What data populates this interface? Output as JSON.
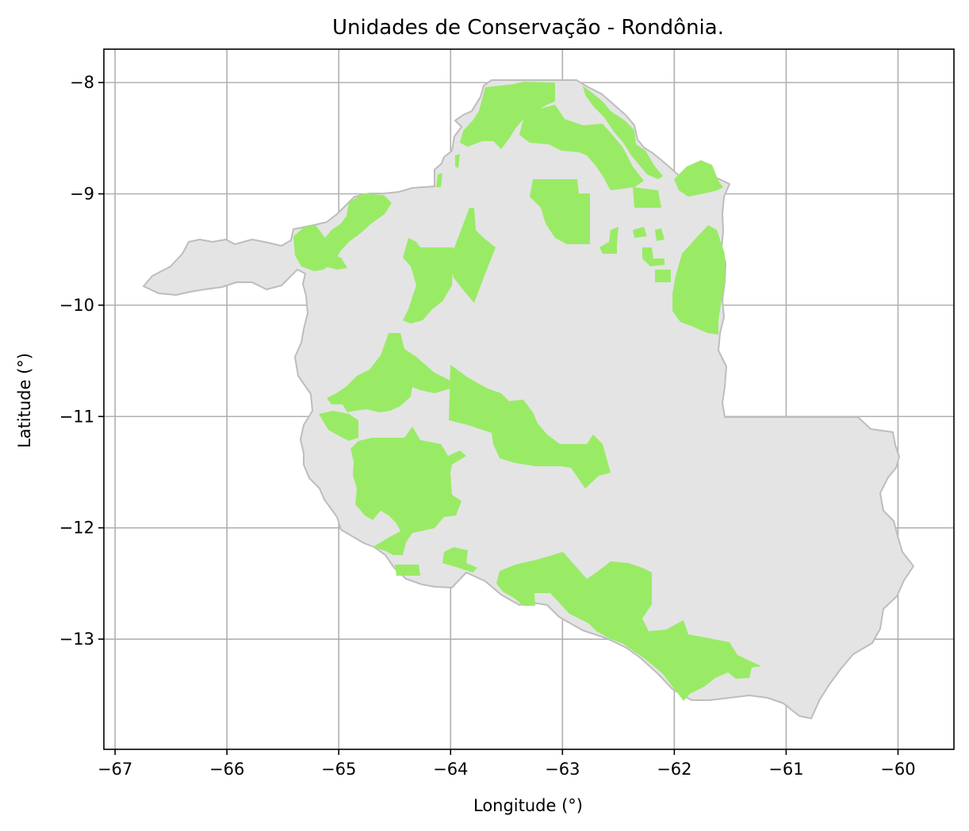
{
  "figure": {
    "title": "Unidades de Conservação - Rondônia.",
    "xlabel": "Longitude (°)",
    "ylabel": "Latitude (°)"
  },
  "chart_data": {
    "type": "map",
    "title": "Unidades de Conservação - Rondônia.",
    "xlabel": "Longitude (°)",
    "ylabel": "Latitude (°)",
    "xlim": [
      -67.1,
      -59.5
    ],
    "ylim": [
      -13.99,
      -7.7
    ],
    "grid": true,
    "x_ticks": [
      -67,
      -66,
      -65,
      -64,
      -63,
      -62,
      -61,
      -60
    ],
    "y_ticks": [
      -8,
      -9,
      -10,
      -11,
      -12,
      -13
    ],
    "x_tick_labels": [
      "−67",
      "−66",
      "−65",
      "−64",
      "−63",
      "−62",
      "−61",
      "−60"
    ],
    "y_tick_labels": [
      "−8",
      "−9",
      "−10",
      "−11",
      "−12",
      "−13"
    ],
    "colors": {
      "state_fill": "#e4e4e4",
      "state_edge": "#bdbdbd",
      "conservation_units": "#99eb66",
      "grid": "#b0b0b0"
    }
  }
}
